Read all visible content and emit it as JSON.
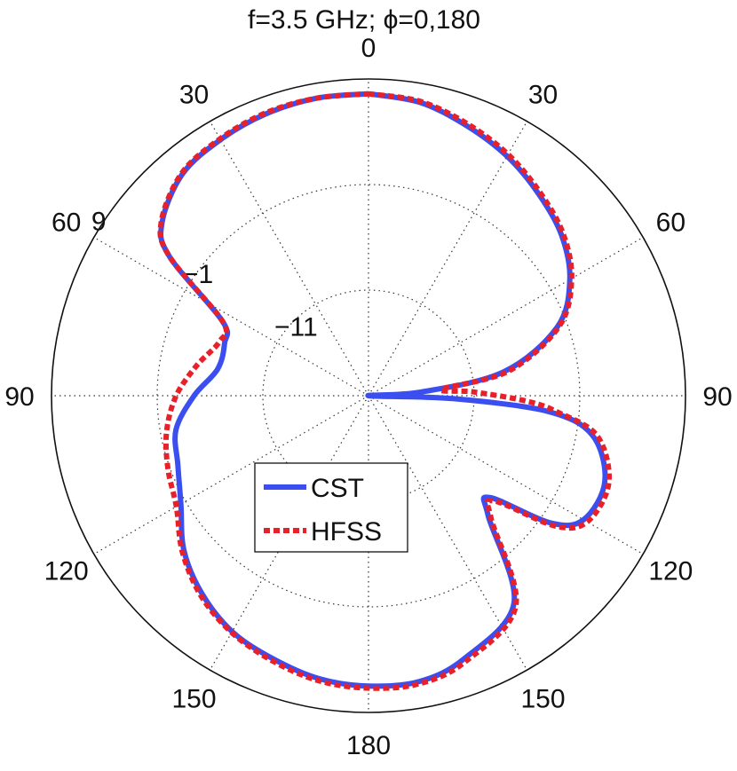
{
  "chart_data": {
    "type": "line",
    "subtype": "polar",
    "title": "f=3.5 GHz;   ϕ=0,180",
    "angular_axis": {
      "zero_at": "top",
      "tick_labels": [
        {
          "angle": 0,
          "text": "0"
        },
        {
          "angle": 30,
          "text": "30"
        },
        {
          "angle": 60,
          "text": "60"
        },
        {
          "angle": 90,
          "text": "90"
        },
        {
          "angle": 120,
          "text": "120"
        },
        {
          "angle": 150,
          "text": "150"
        },
        {
          "angle": 180,
          "text": "180"
        },
        {
          "angle": 210,
          "text": "150"
        },
        {
          "angle": 240,
          "text": "120"
        },
        {
          "angle": 270,
          "text": "90"
        },
        {
          "angle": 300,
          "text": "60"
        },
        {
          "angle": 330,
          "text": "30"
        }
      ]
    },
    "radial_axis": {
      "range": [
        -21,
        9
      ],
      "ticks": [
        {
          "value": -11,
          "text": "−11"
        },
        {
          "value": -1,
          "text": "−1"
        },
        {
          "value": 9,
          "text": "9"
        }
      ],
      "tick_angle": 300
    },
    "grid": true,
    "legend": {
      "position": "center-left",
      "entries": [
        "CST",
        "HFSS"
      ]
    },
    "series": [
      {
        "name": "CST",
        "color": "#3b4ef0",
        "style": "solid",
        "points": [
          [
            0,
            7.6
          ],
          [
            10,
            7.2
          ],
          [
            20,
            6.2
          ],
          [
            30,
            5.2
          ],
          [
            40,
            4.0
          ],
          [
            50,
            2.8
          ],
          [
            60,
            1.0
          ],
          [
            70,
            -2.0
          ],
          [
            80,
            -8.0
          ],
          [
            86,
            -16.0
          ],
          [
            90,
            -21.0
          ],
          [
            92,
            -13.0
          ],
          [
            95,
            -4.0
          ],
          [
            100,
            0.5
          ],
          [
            110,
            2.8
          ],
          [
            120,
            2.5
          ],
          [
            125,
            0.0
          ],
          [
            130,
            -6.0
          ],
          [
            135,
            -5.0
          ],
          [
            145,
            3.0
          ],
          [
            160,
            5.5
          ],
          [
            170,
            6.5
          ],
          [
            180,
            6.5
          ],
          [
            190,
            6.2
          ],
          [
            200,
            5.5
          ],
          [
            210,
            4.8
          ],
          [
            220,
            3.5
          ],
          [
            230,
            1.8
          ],
          [
            240,
            -0.5
          ],
          [
            250,
            -1.8
          ],
          [
            260,
            -2.5
          ],
          [
            270,
            -4.5
          ],
          [
            280,
            -6.5
          ],
          [
            290,
            -6.5
          ],
          [
            297,
            -5.5
          ],
          [
            305,
            2.0
          ],
          [
            310,
            4.5
          ],
          [
            320,
            6.4
          ],
          [
            330,
            7.0
          ],
          [
            340,
            7.4
          ],
          [
            350,
            7.6
          ],
          [
            360,
            7.6
          ]
        ]
      },
      {
        "name": "HFSS",
        "color": "#e8202a",
        "style": "dotted",
        "points": [
          [
            0,
            7.6
          ],
          [
            10,
            7.3
          ],
          [
            20,
            6.4
          ],
          [
            30,
            5.4
          ],
          [
            40,
            4.2
          ],
          [
            50,
            3.0
          ],
          [
            60,
            1.2
          ],
          [
            70,
            -1.8
          ],
          [
            80,
            -7.5
          ],
          [
            85,
            -14.0
          ],
          [
            88,
            -11.0
          ],
          [
            92,
            -6.0
          ],
          [
            95,
            -3.0
          ],
          [
            100,
            1.0
          ],
          [
            110,
            3.2
          ],
          [
            120,
            2.9
          ],
          [
            125,
            0.5
          ],
          [
            130,
            -5.5
          ],
          [
            135,
            -4.6
          ],
          [
            145,
            3.3
          ],
          [
            160,
            5.8
          ],
          [
            170,
            6.7
          ],
          [
            180,
            6.7
          ],
          [
            190,
            6.4
          ],
          [
            200,
            5.7
          ],
          [
            210,
            4.9
          ],
          [
            220,
            3.7
          ],
          [
            230,
            2.0
          ],
          [
            240,
            0.0
          ],
          [
            250,
            -0.8
          ],
          [
            260,
            -1.6
          ],
          [
            270,
            -2.8
          ],
          [
            280,
            -4.5
          ],
          [
            290,
            -6.0
          ],
          [
            297,
            -5.5
          ],
          [
            305,
            2.0
          ],
          [
            310,
            4.6
          ],
          [
            320,
            6.5
          ],
          [
            330,
            7.1
          ],
          [
            340,
            7.5
          ],
          [
            350,
            7.6
          ],
          [
            360,
            7.6
          ]
        ]
      }
    ]
  }
}
